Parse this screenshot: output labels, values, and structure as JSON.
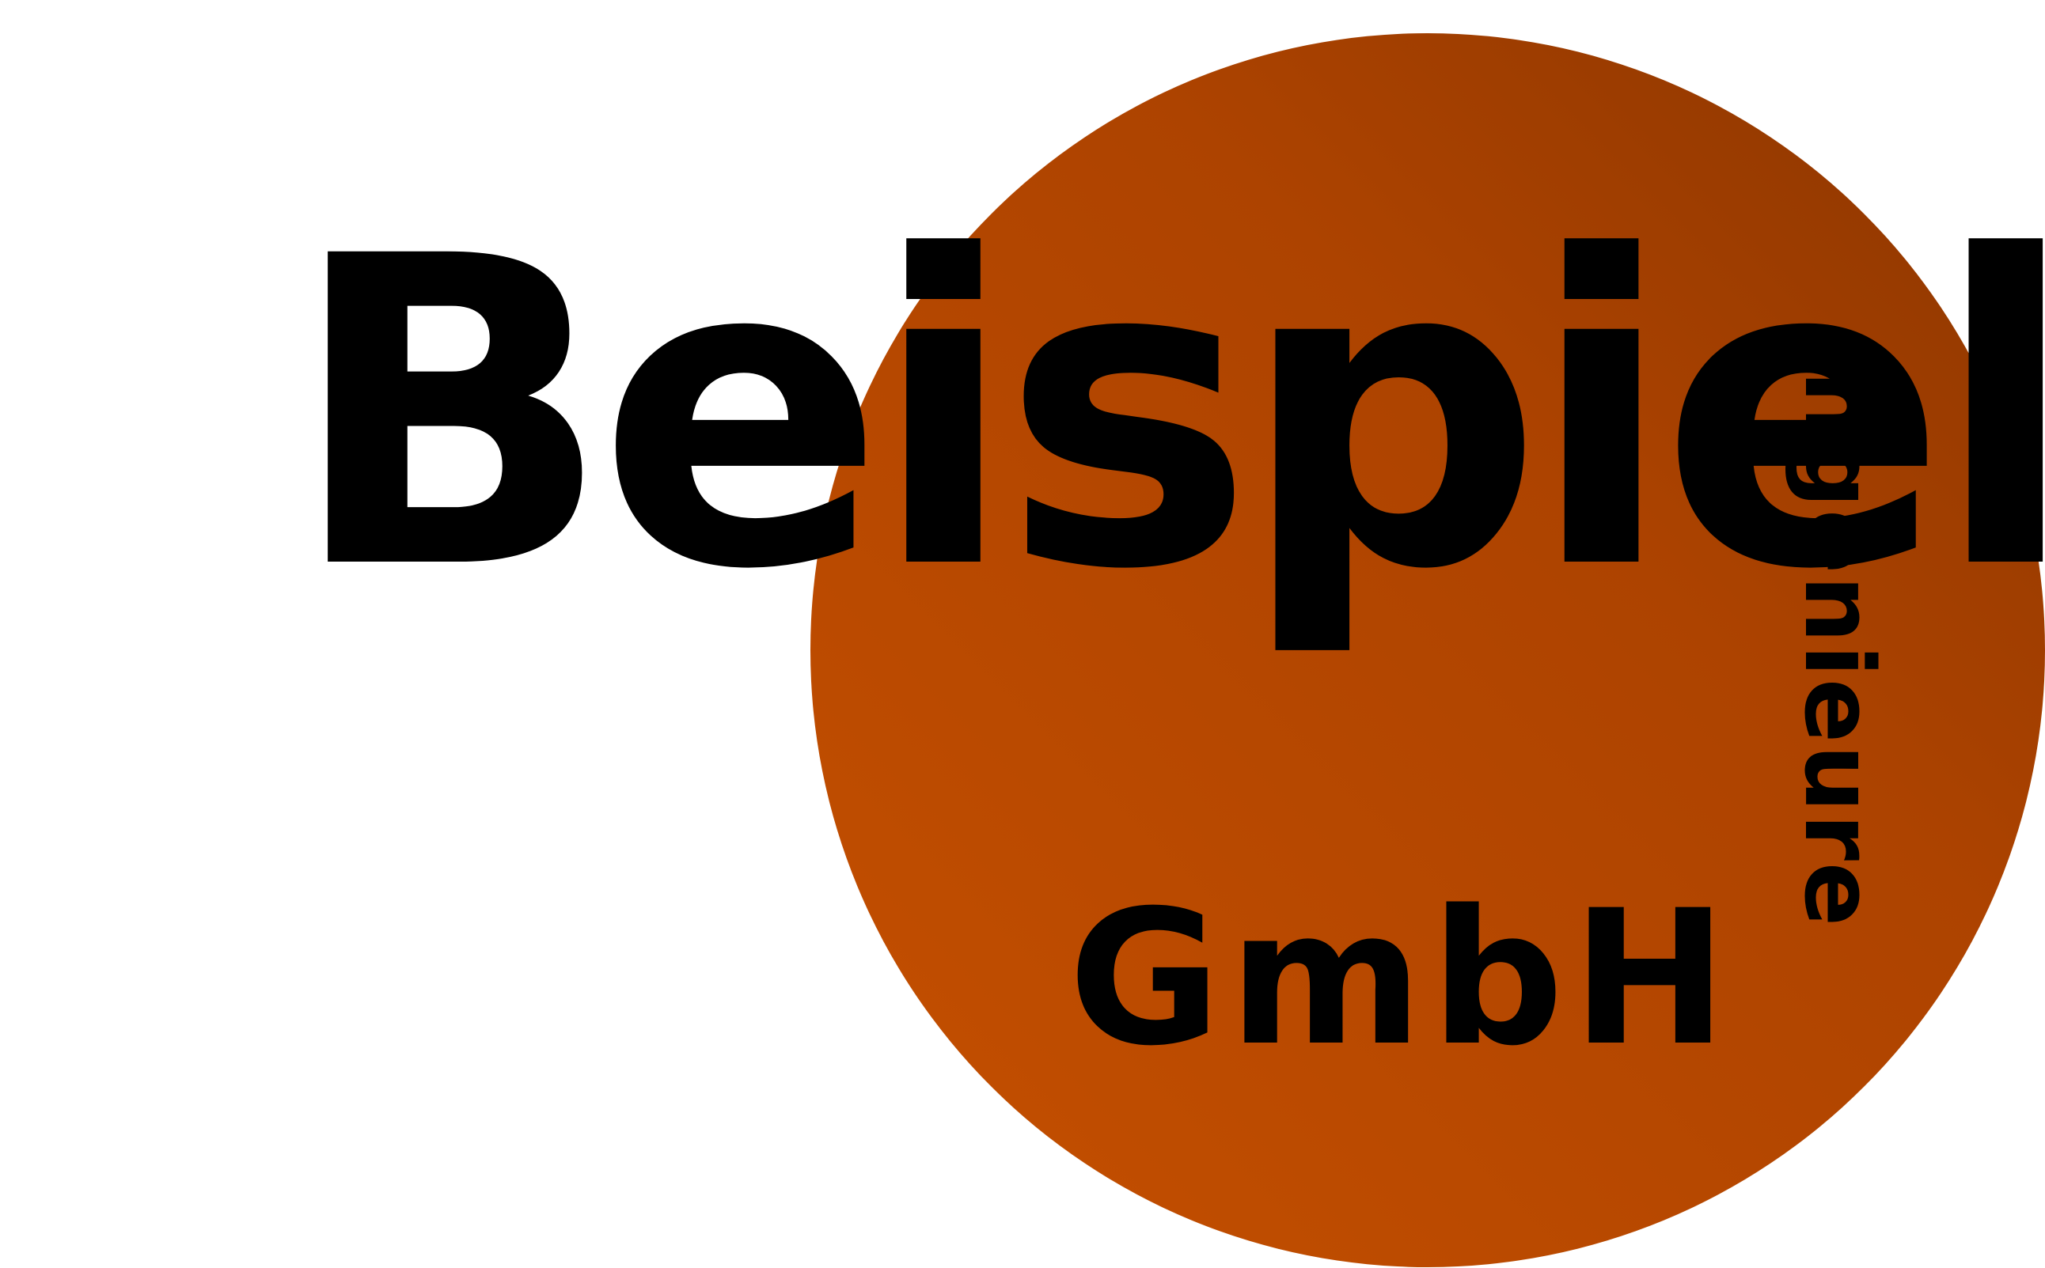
{
  "logo": {
    "brand_name": "Beispiel",
    "legal_form": "GmbH",
    "tagline": "Ingenieure"
  },
  "colors": {
    "background": "#ffffff",
    "circle_light": "#c65000",
    "circle_mid": "#ad4300",
    "circle_dark": "#8a3500",
    "text": "#000000"
  }
}
